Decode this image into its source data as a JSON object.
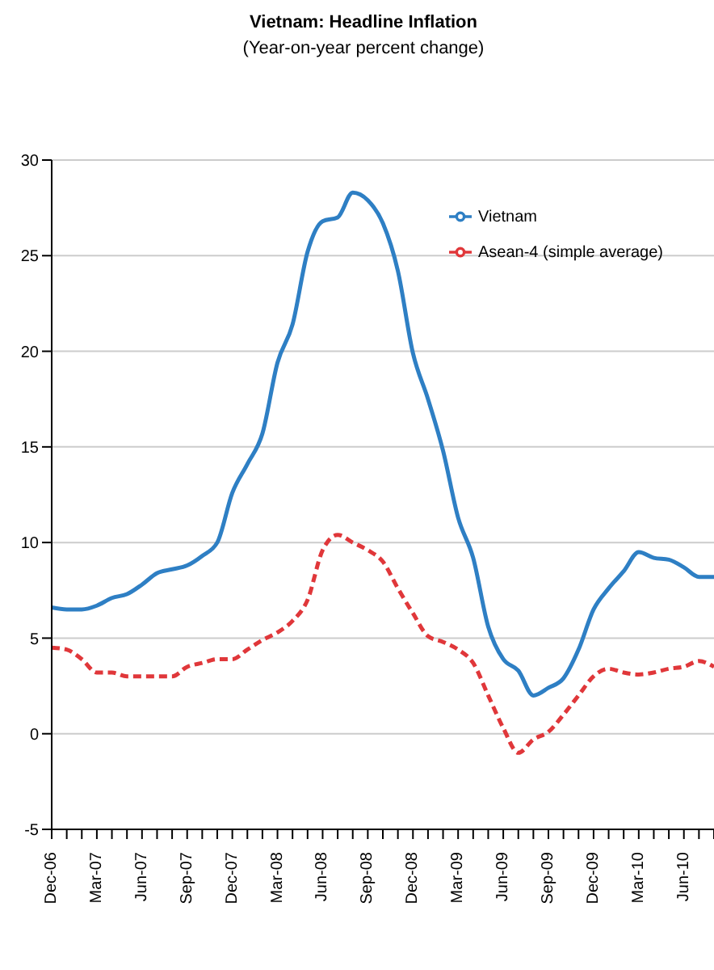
{
  "chart_data": {
    "type": "line",
    "title": "Vietnam: Headline Inflation",
    "subtitle": "(Year-on-year percent change)",
    "categories": [
      "Dec-06",
      null,
      null,
      "Mar-07",
      null,
      null,
      "Jun-07",
      null,
      null,
      "Sep-07",
      null,
      null,
      "Dec-07",
      null,
      null,
      "Mar-08",
      null,
      null,
      "Jun-08",
      null,
      null,
      "Sep-08",
      null,
      null,
      "Dec-08",
      null,
      null,
      "Mar-09",
      null,
      null,
      "Jun-09",
      null,
      null,
      "Sep-09",
      null,
      null,
      "Dec-09",
      null,
      null,
      "Mar-10",
      null,
      null,
      "Jun-10",
      null,
      null
    ],
    "series": [
      {
        "name": "Vietnam",
        "color": "#2e7fc4",
        "line_style": "solid",
        "values": [
          6.6,
          6.5,
          6.5,
          6.7,
          7.1,
          7.3,
          7.8,
          8.4,
          8.6,
          8.8,
          9.3,
          10.0,
          12.6,
          14.1,
          15.7,
          19.4,
          21.4,
          25.2,
          26.8,
          27.0,
          28.3,
          27.9,
          26.7,
          24.2,
          19.9,
          17.5,
          14.8,
          11.3,
          9.2,
          5.6,
          3.9,
          3.3,
          2.0,
          2.4,
          2.9,
          4.4,
          6.5,
          7.6,
          8.5,
          9.5,
          9.2,
          9.1,
          8.7,
          8.2,
          8.2
        ]
      },
      {
        "name": "Asean-4 (simple average)",
        "color": "#e0373a",
        "line_style": "dashed",
        "values": [
          4.5,
          4.4,
          3.9,
          3.2,
          3.2,
          3.0,
          3.0,
          3.0,
          3.0,
          3.5,
          3.7,
          3.9,
          3.9,
          4.4,
          4.9,
          5.3,
          5.9,
          7.0,
          9.6,
          10.4,
          10.0,
          9.6,
          9.0,
          7.6,
          6.3,
          5.1,
          4.8,
          4.4,
          3.7,
          2.0,
          0.3,
          -1.0,
          -0.3,
          0.1,
          1.0,
          2.0,
          3.0,
          3.4,
          3.2,
          3.1,
          3.2,
          3.4,
          3.5,
          3.8,
          3.5
        ]
      }
    ],
    "ylim": [
      -5,
      30
    ],
    "yticks": [
      -5,
      0,
      5,
      10,
      15,
      20,
      25,
      30
    ],
    "grid": "y",
    "legend": "top right",
    "marker": "none"
  }
}
